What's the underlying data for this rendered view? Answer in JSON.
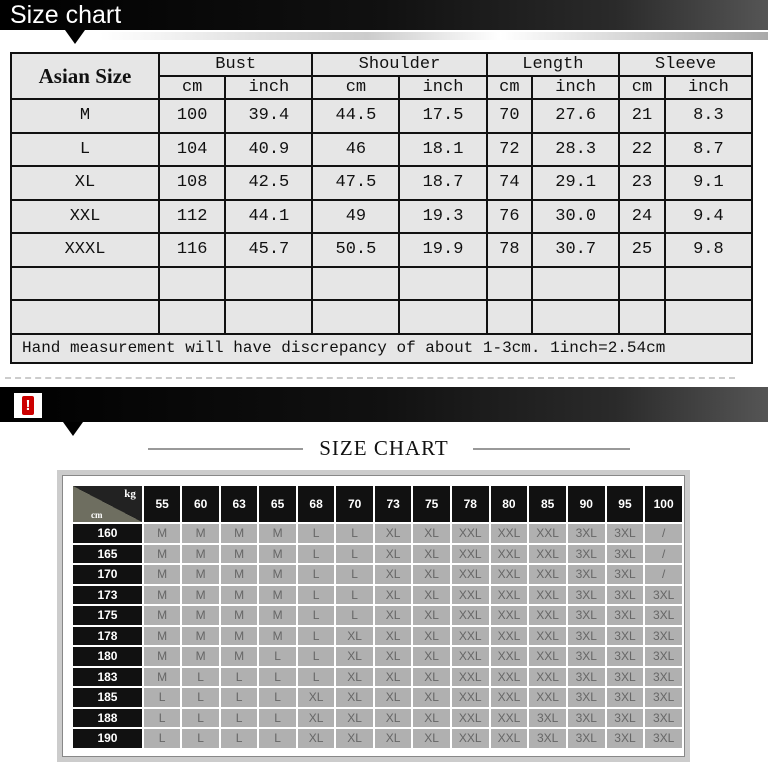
{
  "banner1": {
    "title": "Size chart"
  },
  "table1": {
    "corner": "Asian Size",
    "groups": [
      "Bust",
      "Shoulder",
      "Length",
      "Sleeve"
    ],
    "units": [
      "cm",
      "inch"
    ],
    "rows": [
      [
        "M",
        "100",
        "39.4",
        "44.5",
        "17.5",
        "70",
        "27.6",
        "21",
        "8.3"
      ],
      [
        "L",
        "104",
        "40.9",
        "46",
        "18.1",
        "72",
        "28.3",
        "22",
        "8.7"
      ],
      [
        "XL",
        "108",
        "42.5",
        "47.5",
        "18.7",
        "74",
        "29.1",
        "23",
        "9.1"
      ],
      [
        "XXL",
        "112",
        "44.1",
        "49",
        "19.3",
        "76",
        "30.0",
        "24",
        "9.4"
      ],
      [
        "XXXL",
        "116",
        "45.7",
        "50.5",
        "19.9",
        "78",
        "30.7",
        "25",
        "9.8"
      ],
      [
        "",
        "",
        "",
        "",
        "",
        "",
        "",
        "",
        ""
      ],
      [
        "",
        "",
        "",
        "",
        "",
        "",
        "",
        "",
        ""
      ]
    ],
    "footer": "Hand measurement will have discrepancy of about 1-3cm.   1inch=2.54cm"
  },
  "banner2": {
    "icon": "warning-icon",
    "icon_glyph": "!",
    "accent": "#cc0000"
  },
  "chart2": {
    "title": "SIZE CHART",
    "corner_kg": "kg",
    "corner_cm": "cm",
    "weights": [
      "55",
      "60",
      "63",
      "65",
      "68",
      "70",
      "73",
      "75",
      "78",
      "80",
      "85",
      "90",
      "95",
      "100"
    ],
    "rows": [
      {
        "height": "160",
        "sizes": [
          "M",
          "M",
          "M",
          "M",
          "L",
          "L",
          "XL",
          "XL",
          "XXL",
          "XXL",
          "XXL",
          "3XL",
          "3XL",
          "/"
        ]
      },
      {
        "height": "165",
        "sizes": [
          "M",
          "M",
          "M",
          "M",
          "L",
          "L",
          "XL",
          "XL",
          "XXL",
          "XXL",
          "XXL",
          "3XL",
          "3XL",
          "/"
        ]
      },
      {
        "height": "170",
        "sizes": [
          "M",
          "M",
          "M",
          "M",
          "L",
          "L",
          "XL",
          "XL",
          "XXL",
          "XXL",
          "XXL",
          "3XL",
          "3XL",
          "/"
        ]
      },
      {
        "height": "173",
        "sizes": [
          "M",
          "M",
          "M",
          "M",
          "L",
          "L",
          "XL",
          "XL",
          "XXL",
          "XXL",
          "XXL",
          "3XL",
          "3XL",
          "3XL"
        ]
      },
      {
        "height": "175",
        "sizes": [
          "M",
          "M",
          "M",
          "M",
          "L",
          "L",
          "XL",
          "XL",
          "XXL",
          "XXL",
          "XXL",
          "3XL",
          "3XL",
          "3XL"
        ]
      },
      {
        "height": "178",
        "sizes": [
          "M",
          "M",
          "M",
          "M",
          "L",
          "XL",
          "XL",
          "XL",
          "XXL",
          "XXL",
          "XXL",
          "3XL",
          "3XL",
          "3XL"
        ]
      },
      {
        "height": "180",
        "sizes": [
          "M",
          "M",
          "M",
          "L",
          "L",
          "XL",
          "XL",
          "XL",
          "XXL",
          "XXL",
          "XXL",
          "3XL",
          "3XL",
          "3XL"
        ]
      },
      {
        "height": "183",
        "sizes": [
          "M",
          "L",
          "L",
          "L",
          "L",
          "XL",
          "XL",
          "XL",
          "XXL",
          "XXL",
          "XXL",
          "3XL",
          "3XL",
          "3XL"
        ]
      },
      {
        "height": "185",
        "sizes": [
          "L",
          "L",
          "L",
          "L",
          "XL",
          "XL",
          "XL",
          "XL",
          "XXL",
          "XXL",
          "XXL",
          "3XL",
          "3XL",
          "3XL"
        ]
      },
      {
        "height": "188",
        "sizes": [
          "L",
          "L",
          "L",
          "L",
          "XL",
          "XL",
          "XL",
          "XL",
          "XXL",
          "XXL",
          "3XL",
          "3XL",
          "3XL",
          "3XL"
        ]
      },
      {
        "height": "190",
        "sizes": [
          "L",
          "L",
          "L",
          "L",
          "XL",
          "XL",
          "XL",
          "XL",
          "XXL",
          "XXL",
          "3XL",
          "3XL",
          "3XL",
          "3XL"
        ]
      }
    ]
  }
}
